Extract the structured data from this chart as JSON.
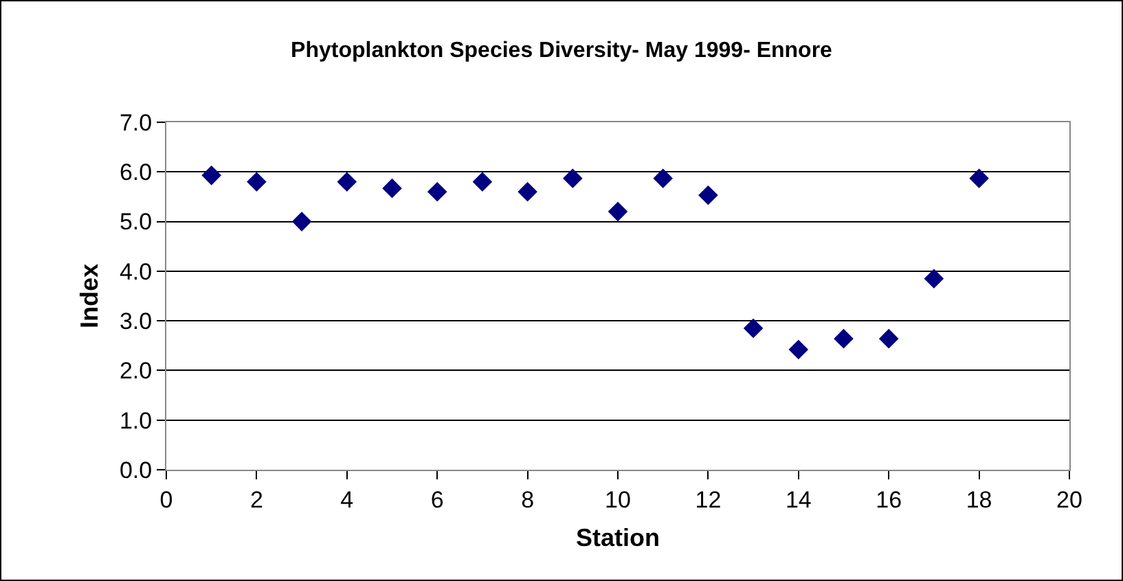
{
  "chart_data": {
    "type": "scatter",
    "title": "Phytoplankton Species Diversity- May 1999- Ennore",
    "xlabel": "Station",
    "ylabel": "Index",
    "x": [
      1,
      2,
      3,
      4,
      5,
      6,
      7,
      8,
      9,
      10,
      11,
      12,
      13,
      14,
      15,
      16,
      17,
      18
    ],
    "values": [
      5.93,
      5.8,
      5.0,
      5.8,
      5.67,
      5.6,
      5.8,
      5.6,
      5.87,
      5.2,
      5.87,
      5.53,
      2.85,
      2.42,
      2.64,
      2.64,
      3.85,
      5.87
    ],
    "color": "#000080",
    "marker": "diamond",
    "xlim": [
      0,
      20
    ],
    "xticks": [
      0,
      2,
      4,
      6,
      8,
      10,
      12,
      14,
      16,
      18,
      20
    ],
    "ylim": [
      0,
      7
    ],
    "yticks": [
      {
        "value": 0,
        "label": "0.0"
      },
      {
        "value": 1,
        "label": "1.0"
      },
      {
        "value": 2,
        "label": "2.0"
      },
      {
        "value": 3,
        "label": "3.0"
      },
      {
        "value": 4,
        "label": "4.0"
      },
      {
        "value": 5,
        "label": "5.0"
      },
      {
        "value": 6,
        "label": "6.0"
      },
      {
        "value": 7,
        "label": "7.0"
      }
    ],
    "grid": "y",
    "legend": false
  }
}
